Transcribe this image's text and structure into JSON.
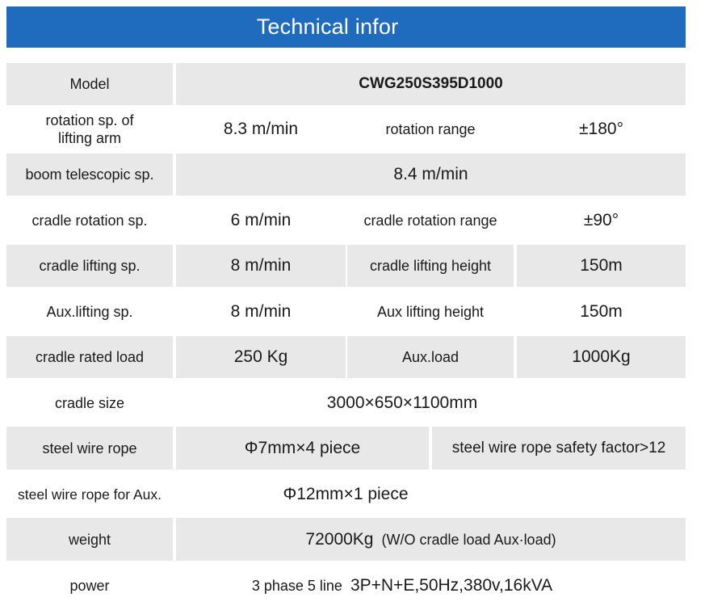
{
  "header": {
    "title": "Technical infor"
  },
  "rows": [
    {
      "label": "Model",
      "value": "CWG250S395D1000"
    },
    {
      "label": "rotation sp. of lifting arm",
      "value": "8.3 m/min",
      "label2": "rotation range",
      "value2": "±180°"
    },
    {
      "label": "boom telescopic sp.",
      "value": "8.4 m/min"
    },
    {
      "label": "cradle rotation sp.",
      "value": "6 m/min",
      "label2": "cradle rotation range",
      "value2": "±90°"
    },
    {
      "label": "cradle lifting sp.",
      "value": "8 m/min",
      "label2": "cradle lifting height",
      "value2": "150m"
    },
    {
      "label": "Aux.lifting sp.",
      "value": "8 m/min",
      "label2": "Aux lifting height",
      "value2": "150m"
    },
    {
      "label": "cradle rated load",
      "value": "250 Kg",
      "label2": "Aux.load",
      "value2": "1000Kg"
    },
    {
      "label": "cradle size",
      "value": "3000×650×1100mm"
    },
    {
      "label": "steel wire rope",
      "value": "Φ7mm×4 piece",
      "value2": "steel wire rope safety factor>12"
    },
    {
      "label": "steel wire rope for Aux.",
      "value": "Φ12mm×1 piece"
    },
    {
      "label": "weight",
      "value": "72000Kg",
      "note": "(W/O cradle load Aux·load)"
    },
    {
      "label": "power",
      "note": "3 phase 5 line",
      "value": "3P+N+E,50Hz,380v,16kVA"
    }
  ]
}
